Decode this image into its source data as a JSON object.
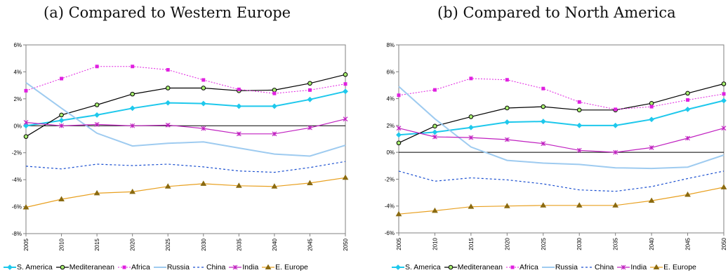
{
  "chart_data": [
    {
      "type": "line",
      "title": "(a)  Compared to Western Europe",
      "x": [
        2005,
        2010,
        2015,
        2020,
        2025,
        2030,
        2035,
        2040,
        2045,
        2050
      ],
      "x_tick_labels": [
        "2005",
        "2010",
        "2015",
        "2020",
        "2025",
        "2030",
        "2035",
        "2040",
        "2045",
        "2050"
      ],
      "ylim": [
        -8,
        6
      ],
      "y_ticks": [
        -8,
        -6,
        -4,
        -2,
        0,
        2,
        4,
        6
      ],
      "y_tick_labels": [
        "-8%",
        "-6%",
        "-4%",
        "-2%",
        "0%",
        "2%",
        "4%",
        "6%"
      ],
      "legend_position": "bottom",
      "series": [
        {
          "name": "S. America",
          "color": "#1ec8ec",
          "dash": "",
          "marker": "diamond",
          "width": 2,
          "values": [
            0.0,
            0.4,
            0.8,
            1.3,
            1.7,
            1.65,
            1.45,
            1.45,
            1.95,
            2.55
          ]
        },
        {
          "name": "Mediteranean",
          "color": "#000000",
          "dash": "",
          "marker": "circle",
          "width": 1.2,
          "values": [
            -0.8,
            0.8,
            1.55,
            2.35,
            2.8,
            2.8,
            2.6,
            2.65,
            3.15,
            3.8
          ]
        },
        {
          "name": "Africa",
          "color": "#e020e0",
          "dash": "2,2",
          "marker": "square",
          "width": 1,
          "values": [
            2.6,
            3.5,
            4.4,
            4.4,
            4.15,
            3.4,
            2.7,
            2.4,
            2.65,
            3.1
          ]
        },
        {
          "name": "Russia",
          "color": "#9ecbf0",
          "dash": "",
          "marker": "none",
          "width": 2,
          "values": [
            3.2,
            1.3,
            -0.55,
            -1.5,
            -1.3,
            -1.2,
            -1.65,
            -2.1,
            -2.25,
            -1.45
          ]
        },
        {
          "name": "China",
          "color": "#1a4fd0",
          "dash": "3,3",
          "marker": "none",
          "width": 1.2,
          "values": [
            -3.0,
            -3.2,
            -2.85,
            -2.95,
            -2.85,
            -3.05,
            -3.35,
            -3.45,
            -3.1,
            -2.65
          ]
        },
        {
          "name": "India",
          "color": "#c020c0",
          "dash": "",
          "marker": "x",
          "width": 1.2,
          "values": [
            0.25,
            0.0,
            0.1,
            0.0,
            0.05,
            -0.2,
            -0.6,
            -0.6,
            -0.15,
            0.5
          ]
        },
        {
          "name": "E. Europe",
          "color": "#e8a020",
          "dash": "",
          "marker": "triangle",
          "width": 1.2,
          "values": [
            -6.05,
            -5.45,
            -5.0,
            -4.9,
            -4.5,
            -4.3,
            -4.45,
            -4.5,
            -4.25,
            -3.85
          ]
        }
      ]
    },
    {
      "type": "line",
      "title": "(b)  Compared to North America",
      "x": [
        2005,
        2010,
        2015,
        2020,
        2025,
        2030,
        2035,
        2040,
        2045,
        2050
      ],
      "x_tick_labels": [
        "2005",
        "2010",
        "2015",
        "2020",
        "2025",
        "2030",
        "2035",
        "2040",
        "2045",
        "2050"
      ],
      "ylim": [
        -6,
        8
      ],
      "y_ticks": [
        -6,
        -4,
        -2,
        0,
        2,
        4,
        6,
        8
      ],
      "y_tick_labels": [
        "-6%",
        "-4%",
        "-2%",
        "0%",
        "2%",
        "4%",
        "6%",
        "8%"
      ],
      "legend_position": "bottom",
      "series": [
        {
          "name": "S. America",
          "color": "#1ec8ec",
          "dash": "",
          "marker": "diamond",
          "width": 2,
          "values": [
            1.3,
            1.5,
            1.85,
            2.25,
            2.3,
            2.0,
            2.0,
            2.45,
            3.2,
            3.85
          ]
        },
        {
          "name": "Mediteranean",
          "color": "#000000",
          "dash": "",
          "marker": "circle",
          "width": 1.2,
          "values": [
            0.7,
            1.95,
            2.65,
            3.3,
            3.4,
            3.15,
            3.15,
            3.65,
            4.4,
            5.1
          ]
        },
        {
          "name": "Africa",
          "color": "#e020e0",
          "dash": "2,2",
          "marker": "square",
          "width": 1,
          "values": [
            4.25,
            4.65,
            5.5,
            5.4,
            4.75,
            3.75,
            3.2,
            3.4,
            3.9,
            4.35
          ]
        },
        {
          "name": "Russia",
          "color": "#9ecbf0",
          "dash": "",
          "marker": "none",
          "width": 2,
          "values": [
            4.9,
            2.5,
            0.4,
            -0.6,
            -0.8,
            -0.9,
            -1.15,
            -1.2,
            -1.1,
            -0.2
          ]
        },
        {
          "name": "China",
          "color": "#1a4fd0",
          "dash": "3,3",
          "marker": "none",
          "width": 1.2,
          "values": [
            -1.4,
            -2.15,
            -1.9,
            -2.05,
            -2.35,
            -2.8,
            -2.9,
            -2.55,
            -1.95,
            -1.4
          ]
        },
        {
          "name": "India",
          "color": "#c020c0",
          "dash": "",
          "marker": "x",
          "width": 1.2,
          "values": [
            1.8,
            1.15,
            1.1,
            0.95,
            0.65,
            0.15,
            0.0,
            0.35,
            1.05,
            1.8
          ]
        },
        {
          "name": "E. Europe",
          "color": "#e8a020",
          "dash": "",
          "marker": "triangle",
          "width": 1.2,
          "values": [
            -4.6,
            -4.35,
            -4.05,
            -4.0,
            -3.95,
            -3.95,
            -3.95,
            -3.6,
            -3.15,
            -2.6
          ]
        }
      ]
    }
  ]
}
